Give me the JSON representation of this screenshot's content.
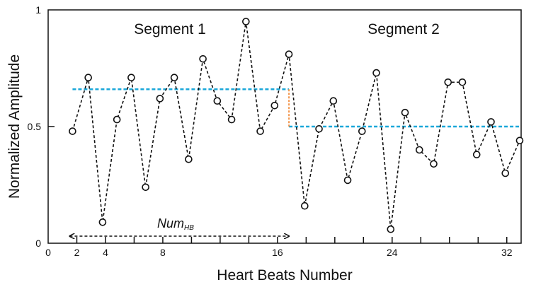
{
  "chart_data": {
    "type": "line",
    "xlabel": "Heart Beats Number",
    "ylabel": "Normalized Amplitude",
    "xlim": [
      0,
      33
    ],
    "ylim": [
      0,
      1
    ],
    "x_ticks": [
      0,
      2,
      4,
      8,
      16,
      24,
      32
    ],
    "x_minor_ticks": [
      6,
      10,
      12,
      14,
      18,
      20,
      22,
      26,
      28,
      30
    ],
    "y_ticks": [
      0,
      0.5,
      1
    ],
    "y_tick_labels": [
      "0",
      "0.5",
      "1"
    ],
    "series": [
      {
        "x": [
          1.7,
          2.8,
          3.8,
          4.8,
          5.8,
          6.8,
          7.8,
          8.8,
          9.8,
          10.8,
          11.8,
          12.8,
          13.8,
          14.8,
          15.8,
          16.8,
          17.9,
          18.9,
          19.9,
          20.9,
          21.9,
          22.9,
          23.9,
          24.9,
          25.9,
          26.9,
          27.9,
          28.9,
          29.9,
          30.9,
          31.9,
          32.9
        ],
        "values": [
          0.48,
          0.71,
          0.09,
          0.53,
          0.71,
          0.24,
          0.62,
          0.71,
          0.36,
          0.79,
          0.61,
          0.53,
          0.95,
          0.48,
          0.59,
          0.81,
          0.16,
          0.49,
          0.61,
          0.27,
          0.48,
          0.73,
          0.06,
          0.56,
          0.4,
          0.34,
          0.69,
          0.69,
          0.38,
          0.52,
          0.3,
          0.44
        ]
      }
    ],
    "segment_means": [
      {
        "x_start": 1.7,
        "x_end": 16.8,
        "value": 0.66
      },
      {
        "x_start": 16.8,
        "x_end": 32.9,
        "value": 0.5
      }
    ],
    "annotations": {
      "segment_1": "Segment 1",
      "segment_2": "Segment 2",
      "num_main": "Num",
      "num_sub": "HB",
      "num_arrow_x": [
        1.7,
        16.8
      ]
    },
    "colors": {
      "mean_line": "#1aa7d9",
      "step_line": "#f28c3c",
      "series": "#111111"
    }
  }
}
